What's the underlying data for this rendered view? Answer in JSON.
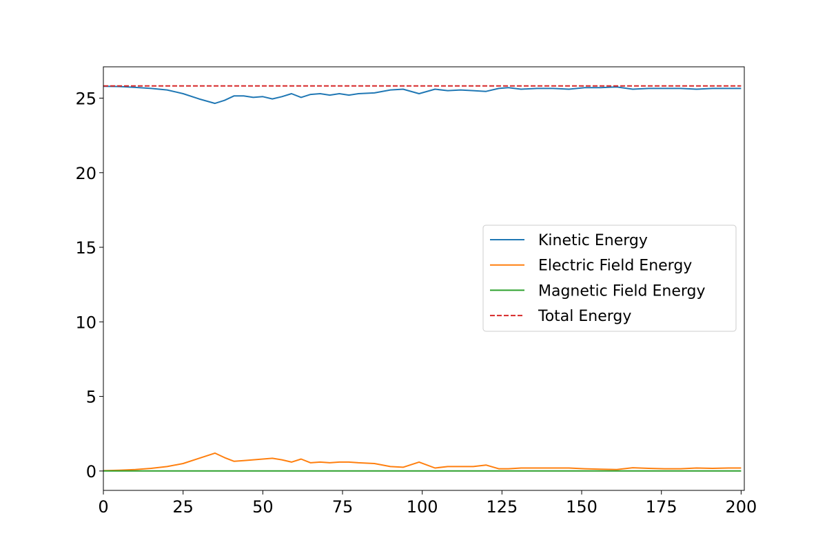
{
  "chart_data": {
    "type": "line",
    "title": "",
    "xlabel": "",
    "ylabel": "",
    "xlim": [
      0,
      201
    ],
    "ylim": [
      -1.3,
      27.1
    ],
    "xticks": [
      0,
      25,
      50,
      75,
      100,
      125,
      150,
      175,
      200
    ],
    "yticks": [
      0,
      5,
      10,
      15,
      20,
      25
    ],
    "grid": false,
    "legend_position": "center-right",
    "series": [
      {
        "name": "Kinetic Energy",
        "color": "#1f77b4",
        "dash": "solid",
        "x": [
          0,
          5,
          10,
          15,
          20,
          25,
          30,
          35,
          38,
          41,
          44,
          47,
          50,
          53,
          56,
          59,
          62,
          65,
          68,
          71,
          74,
          77,
          80,
          85,
          90,
          94,
          99,
          104,
          108,
          112,
          116,
          120,
          124,
          127,
          131,
          136,
          141,
          146,
          151,
          156,
          161,
          166,
          171,
          176,
          181,
          186,
          191,
          196,
          200
        ],
        "y": [
          25.8,
          25.78,
          25.72,
          25.65,
          25.55,
          25.3,
          24.95,
          24.65,
          24.85,
          25.15,
          25.15,
          25.05,
          25.1,
          24.95,
          25.1,
          25.3,
          25.05,
          25.25,
          25.3,
          25.2,
          25.3,
          25.2,
          25.3,
          25.35,
          25.55,
          25.6,
          25.3,
          25.6,
          25.5,
          25.55,
          25.5,
          25.45,
          25.65,
          25.7,
          25.6,
          25.65,
          25.65,
          25.6,
          25.7,
          25.7,
          25.75,
          25.6,
          25.65,
          25.65,
          25.65,
          25.6,
          25.65,
          25.65,
          25.65
        ]
      },
      {
        "name": "Electric Field Energy",
        "color": "#ff7f0e",
        "dash": "solid",
        "x": [
          0,
          5,
          10,
          15,
          20,
          25,
          30,
          35,
          38,
          41,
          44,
          47,
          50,
          53,
          56,
          59,
          62,
          65,
          68,
          71,
          74,
          77,
          80,
          85,
          90,
          94,
          99,
          104,
          108,
          112,
          116,
          120,
          124,
          127,
          131,
          136,
          141,
          146,
          151,
          156,
          161,
          166,
          171,
          176,
          181,
          186,
          191,
          196,
          200
        ],
        "y": [
          0.02,
          0.05,
          0.1,
          0.18,
          0.3,
          0.5,
          0.85,
          1.2,
          0.9,
          0.65,
          0.7,
          0.75,
          0.8,
          0.85,
          0.75,
          0.6,
          0.8,
          0.55,
          0.6,
          0.55,
          0.6,
          0.6,
          0.55,
          0.5,
          0.3,
          0.25,
          0.6,
          0.2,
          0.3,
          0.3,
          0.3,
          0.4,
          0.15,
          0.15,
          0.2,
          0.2,
          0.2,
          0.2,
          0.15,
          0.12,
          0.1,
          0.22,
          0.18,
          0.15,
          0.15,
          0.2,
          0.18,
          0.2,
          0.2
        ]
      },
      {
        "name": "Magnetic Field Energy",
        "color": "#2ca02c",
        "dash": "solid",
        "x": [
          0,
          200
        ],
        "y": [
          0,
          0
        ]
      },
      {
        "name": "Total Energy",
        "color": "#d62728",
        "dash": "dashed",
        "x": [
          0,
          200
        ],
        "y": [
          25.82,
          25.82
        ]
      }
    ]
  }
}
